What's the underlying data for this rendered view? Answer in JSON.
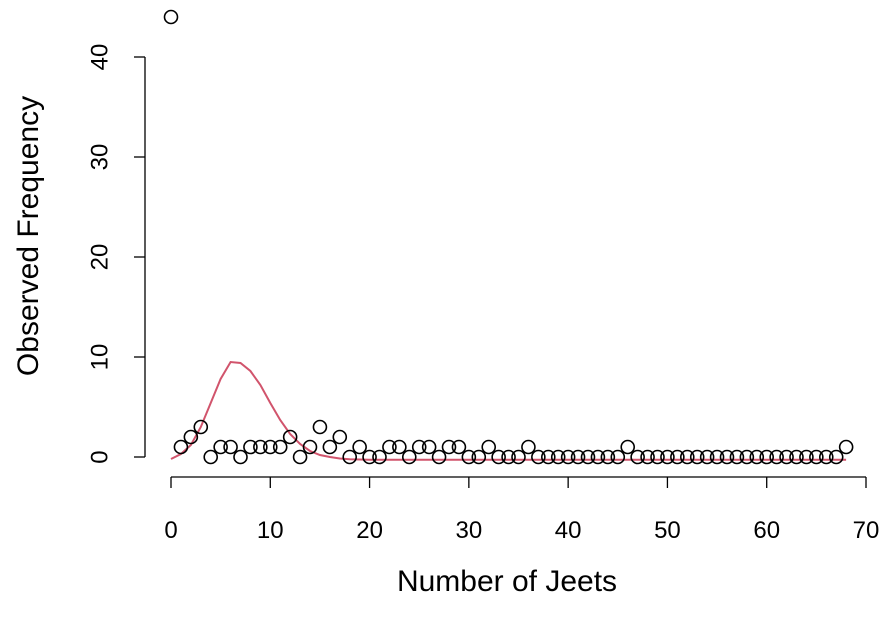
{
  "chart_data": {
    "type": "scatter",
    "title": "",
    "xlabel": "Number of Jeets",
    "ylabel": "Observed Frequency",
    "xlim": [
      0,
      70
    ],
    "ylim": [
      0,
      44
    ],
    "grid": false,
    "x_ticks": [
      0,
      10,
      20,
      30,
      40,
      50,
      60,
      70
    ],
    "x_tick_labels": [
      "0",
      "10",
      "20",
      "30",
      "40",
      "50",
      "60",
      "70"
    ],
    "y_ticks": [
      0,
      10,
      20,
      30,
      40
    ],
    "y_tick_labels": [
      "0",
      "10",
      "20",
      "30",
      "40"
    ],
    "series": [
      {
        "style": "points-open-circle",
        "color": "#000000",
        "x": [
          0,
          1,
          2,
          3,
          4,
          5,
          6,
          7,
          8,
          9,
          10,
          11,
          12,
          13,
          14,
          15,
          16,
          17,
          18,
          19,
          20,
          21,
          22,
          23,
          24,
          25,
          26,
          27,
          28,
          29,
          30,
          31,
          32,
          33,
          34,
          35,
          36,
          37,
          38,
          39,
          40,
          41,
          42,
          43,
          44,
          45,
          46,
          47,
          48,
          49,
          50,
          51,
          52,
          53,
          54,
          55,
          56,
          57,
          58,
          59,
          60,
          61,
          62,
          63,
          64,
          65,
          66,
          67,
          68
        ],
        "y": [
          44,
          1,
          2,
          3,
          0,
          1,
          1,
          0,
          1,
          1,
          1,
          1,
          2,
          0,
          1,
          3,
          1,
          2,
          0,
          1,
          0,
          0,
          1,
          1,
          0,
          1,
          1,
          0,
          1,
          1,
          0,
          0,
          1,
          0,
          0,
          0,
          1,
          0,
          0,
          0,
          0,
          0,
          0,
          0,
          0,
          0,
          1,
          0,
          0,
          0,
          0,
          0,
          0,
          0,
          0,
          0,
          0,
          0,
          0,
          0,
          0,
          0,
          0,
          0,
          0,
          0,
          0,
          0,
          1
        ]
      },
      {
        "style": "line",
        "color": "#d1546c",
        "x": [
          0,
          1,
          2,
          3,
          4,
          5,
          6,
          7,
          8,
          9,
          10,
          11,
          12,
          13,
          14,
          15,
          16,
          17,
          18,
          19,
          20,
          22,
          25,
          30,
          35,
          40,
          45,
          50,
          55,
          60,
          65,
          68
        ],
        "y": [
          -0.2,
          0.3,
          1.2,
          3.0,
          5.4,
          7.8,
          9.5,
          9.4,
          8.6,
          7.2,
          5.4,
          3.7,
          2.3,
          1.3,
          0.6,
          0.2,
          0.0,
          -0.15,
          -0.22,
          -0.25,
          -0.27,
          -0.28,
          -0.28,
          -0.28,
          -0.28,
          -0.28,
          -0.28,
          -0.28,
          -0.28,
          -0.28,
          -0.28,
          -0.28
        ]
      }
    ]
  }
}
